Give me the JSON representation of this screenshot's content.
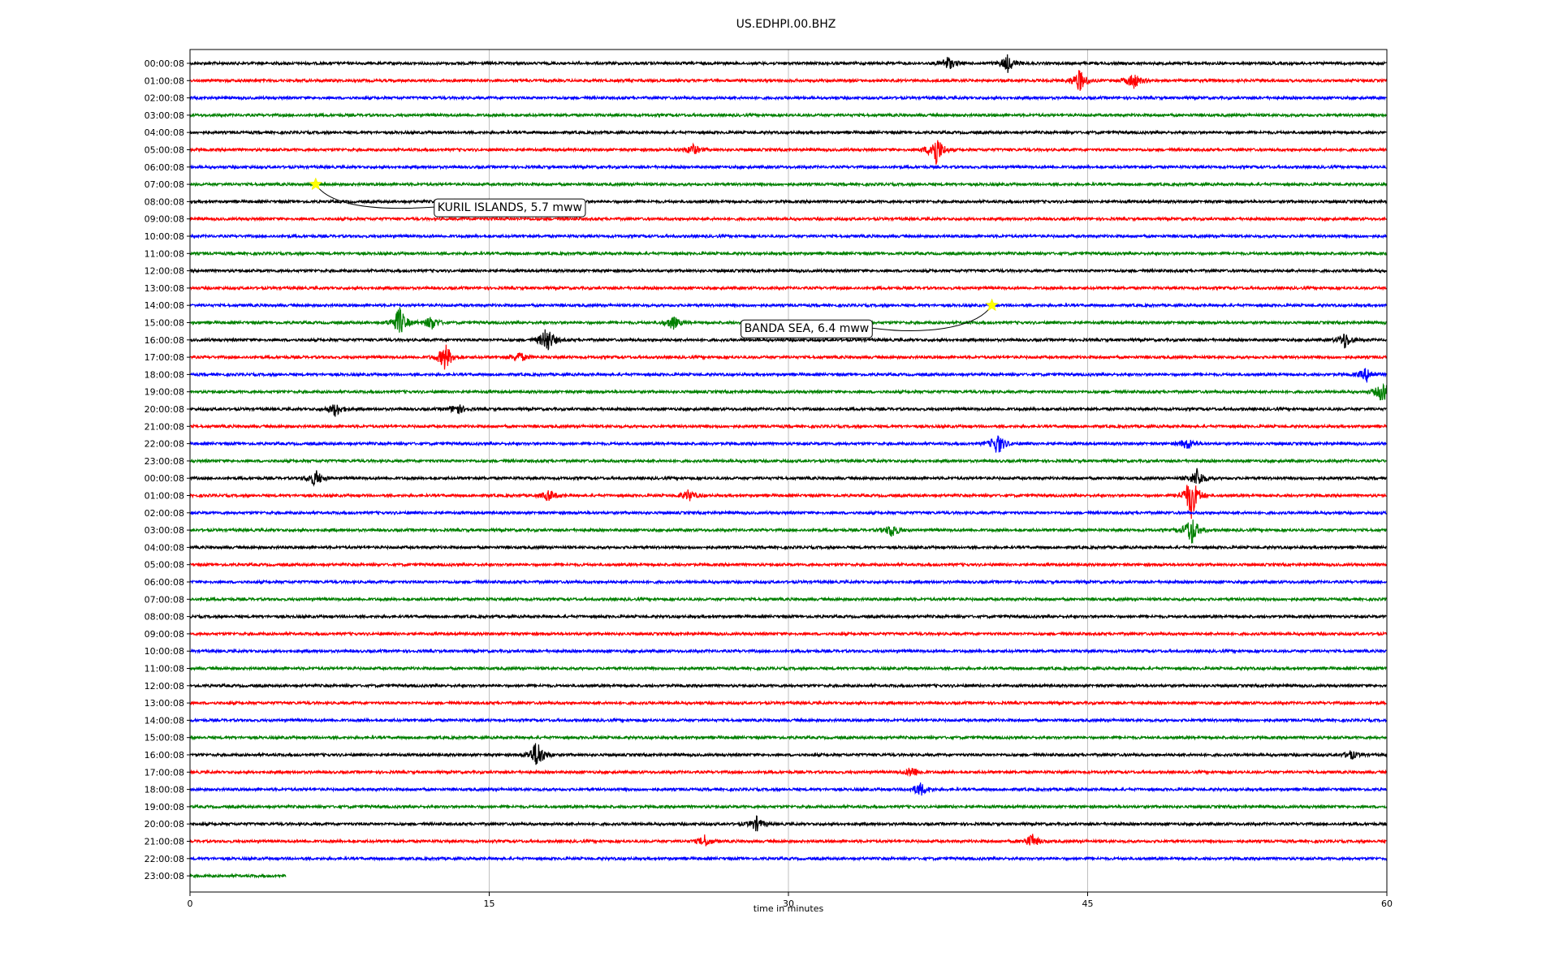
{
  "chart_data": {
    "type": "line",
    "title": "US.EDHPI.00.BHZ",
    "xlabel": "time in minutes",
    "ylabel": "",
    "xlim": [
      0,
      60
    ],
    "xticks": [
      0,
      15,
      30,
      45,
      60
    ],
    "grid": "vertical",
    "trace_colors": [
      "#000000",
      "#ff0000",
      "#0000ff",
      "#008000"
    ],
    "row_labels": [
      "00:00:08",
      "01:00:08",
      "02:00:08",
      "03:00:08",
      "04:00:08",
      "05:00:08",
      "06:00:08",
      "07:00:08",
      "08:00:08",
      "09:00:08",
      "10:00:08",
      "11:00:08",
      "12:00:08",
      "13:00:08",
      "14:00:08",
      "15:00:08",
      "16:00:08",
      "17:00:08",
      "18:00:08",
      "19:00:08",
      "20:00:08",
      "21:00:08",
      "22:00:08",
      "23:00:08",
      "00:00:08",
      "01:00:08",
      "02:00:08",
      "03:00:08",
      "04:00:08",
      "05:00:08",
      "06:00:08",
      "07:00:08",
      "08:00:08",
      "09:00:08",
      "10:00:08",
      "11:00:08",
      "12:00:08",
      "13:00:08",
      "14:00:08",
      "15:00:08",
      "16:00:08",
      "17:00:08",
      "18:00:08",
      "19:00:08",
      "20:00:08",
      "21:00:08",
      "22:00:08",
      "23:00:08"
    ],
    "last_row_end_minute": 4.8,
    "events": [
      {
        "row": 0,
        "minute": 38,
        "amp": 0.5
      },
      {
        "row": 0,
        "minute": 41,
        "amp": 0.6
      },
      {
        "row": 1,
        "minute": 44.6,
        "amp": 0.8
      },
      {
        "row": 1,
        "minute": 47.3,
        "amp": 0.6
      },
      {
        "row": 5,
        "minute": 25.2,
        "amp": 0.4
      },
      {
        "row": 5,
        "minute": 37.4,
        "amp": 1.2
      },
      {
        "row": 15,
        "minute": 10.5,
        "amp": 1.1
      },
      {
        "row": 15,
        "minute": 12.1,
        "amp": 0.5
      },
      {
        "row": 15,
        "minute": 24.2,
        "amp": 0.5
      },
      {
        "row": 16,
        "minute": 17.9,
        "amp": 1.0
      },
      {
        "row": 16,
        "minute": 57.9,
        "amp": 0.6
      },
      {
        "row": 17,
        "minute": 12.8,
        "amp": 1.0
      },
      {
        "row": 17,
        "minute": 16.5,
        "amp": 0.4
      },
      {
        "row": 18,
        "minute": 59,
        "amp": 0.5
      },
      {
        "row": 19,
        "minute": 59.8,
        "amp": 0.8
      },
      {
        "row": 20,
        "minute": 7.3,
        "amp": 0.5
      },
      {
        "row": 20,
        "minute": 13.4,
        "amp": 0.4
      },
      {
        "row": 22,
        "minute": 40.5,
        "amp": 0.8
      },
      {
        "row": 22,
        "minute": 50,
        "amp": 0.4
      },
      {
        "row": 24,
        "minute": 6.3,
        "amp": 0.6
      },
      {
        "row": 24,
        "minute": 50.5,
        "amp": 0.7
      },
      {
        "row": 25,
        "minute": 18,
        "amp": 0.4
      },
      {
        "row": 25,
        "minute": 25,
        "amp": 0.4
      },
      {
        "row": 25,
        "minute": 50.2,
        "amp": 1.6
      },
      {
        "row": 27,
        "minute": 35.2,
        "amp": 0.5
      },
      {
        "row": 27,
        "minute": 50.2,
        "amp": 1.1
      },
      {
        "row": 40,
        "minute": 17.4,
        "amp": 1.1
      },
      {
        "row": 40,
        "minute": 58.2,
        "amp": 0.3
      },
      {
        "row": 41,
        "minute": 36.2,
        "amp": 0.4
      },
      {
        "row": 42,
        "minute": 36.6,
        "amp": 0.5
      },
      {
        "row": 44,
        "minute": 28.4,
        "amp": 0.5
      },
      {
        "row": 45,
        "minute": 42.2,
        "amp": 0.5
      },
      {
        "row": 45,
        "minute": 25.8,
        "amp": 0.4
      }
    ],
    "annotations": [
      {
        "label": "KURIL ISLANDS, 5.7 mww",
        "row": 7,
        "minute": 6.3
      },
      {
        "label": "BANDA SEA, 6.4 mww",
        "row": 14,
        "minute": 40.2
      }
    ]
  }
}
